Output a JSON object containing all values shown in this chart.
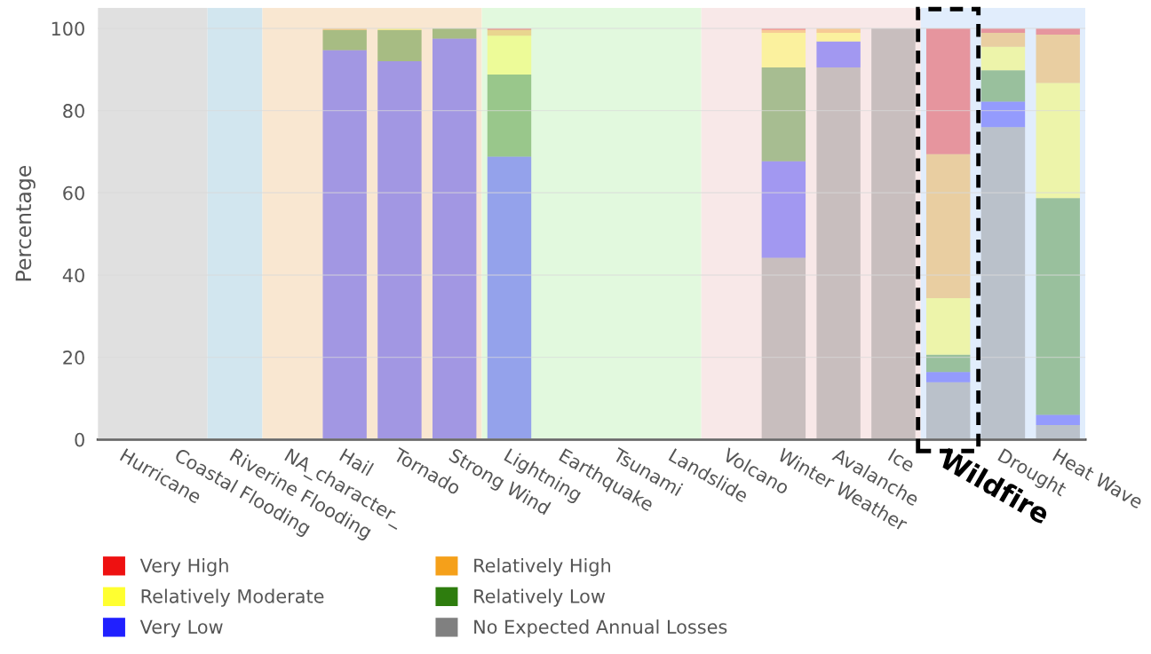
{
  "chart_data": {
    "type": "bar",
    "stacked": true,
    "ylabel": "Percentage",
    "categories": [
      "Hurricane",
      "Coastal Flooding",
      "Riverine Flooding",
      "NA_character_",
      "Hail",
      "Tornado",
      "Strong Wind",
      "Lightning",
      "Earthquake",
      "Tsunami",
      "Landslide",
      "Volcano",
      "Winter Weather",
      "Avalanche",
      "Ice",
      "Wildfire",
      "Drought",
      "Heat Wave"
    ],
    "series": [
      {
        "name": "No Expected Annual Losses",
        "color": "#808080",
        "values": [
          0,
          0,
          0,
          0,
          0,
          0,
          0,
          0,
          0,
          0,
          0,
          0,
          44.2,
          90.5,
          100,
          13.9,
          76.0,
          3.5
        ]
      },
      {
        "name": "Very Low",
        "color": "#2020ff",
        "values": [
          0,
          0,
          0,
          0,
          94.7,
          92.0,
          97.5,
          68.8,
          0,
          0,
          0,
          0,
          23.5,
          6.3,
          0,
          2.5,
          6.2,
          2.5
        ]
      },
      {
        "name": "Relatively Low",
        "color": "#2e7d0e",
        "values": [
          0,
          0,
          0,
          0,
          4.9,
          7.6,
          2.5,
          20.0,
          0,
          0,
          0,
          0,
          22.8,
          0,
          0,
          4.2,
          7.6,
          52.7
        ]
      },
      {
        "name": "Relatively Moderate",
        "color": "#ffff30",
        "values": [
          0,
          0,
          0,
          0,
          0,
          0.4,
          0,
          9.4,
          0,
          0,
          0,
          0,
          8.4,
          2.1,
          0,
          13.8,
          5.7,
          28.0
        ]
      },
      {
        "name": "Relatively High",
        "color": "#f5a01a",
        "values": [
          0,
          0,
          0,
          0,
          0.4,
          0,
          0,
          1.4,
          0,
          0,
          0,
          0,
          0.7,
          1.1,
          0,
          35.0,
          3.4,
          11.8
        ]
      },
      {
        "name": "Very High",
        "color": "#ee1111",
        "values": [
          0,
          0,
          0,
          0,
          0,
          0,
          0,
          0.4,
          0,
          0,
          0,
          0,
          0.4,
          0,
          0,
          30.6,
          1.1,
          1.5
        ]
      }
    ],
    "bands": [
      {
        "axis": "x",
        "from": "Hurricane",
        "to": "Coastal Flooding",
        "color": "#e0e0e0"
      },
      {
        "axis": "x",
        "from": "Riverine Flooding",
        "to": "Riverine Flooding",
        "color": "#d2e6ef"
      },
      {
        "axis": "x",
        "from": "NA_character_",
        "to": "Strong Wind",
        "color": "#f9e7d1"
      },
      {
        "axis": "x",
        "from": "Lightning",
        "to": "Landslide",
        "color": "#e2f9de"
      },
      {
        "axis": "x",
        "from": "Volcano",
        "to": "Ice",
        "color": "#f8e8e8"
      },
      {
        "axis": "x",
        "from": "Wildfire",
        "to": "Heat Wave",
        "color": "#e1edfc"
      }
    ],
    "ylim": [
      0,
      105
    ],
    "yticks": [
      0,
      20,
      40,
      60,
      80,
      100
    ],
    "grid": "y",
    "legend": "bottom"
  }
}
